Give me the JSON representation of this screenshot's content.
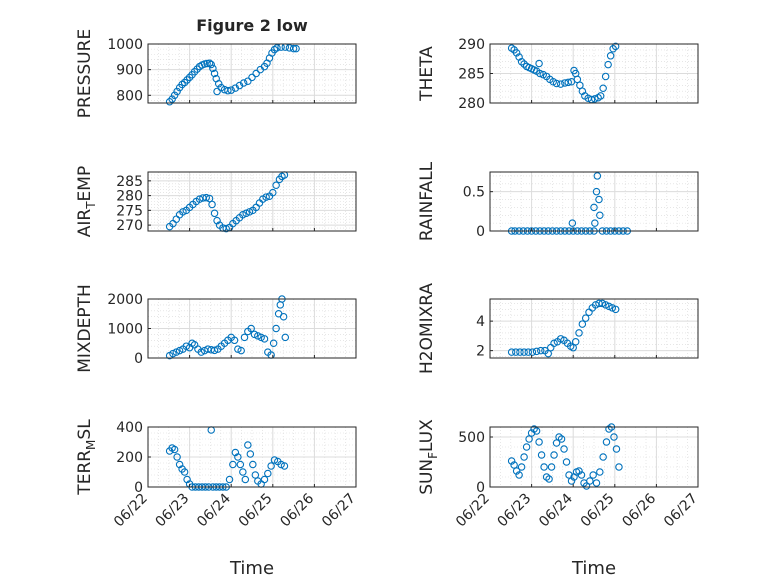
{
  "figure": {
    "title": "Figure 2 low",
    "xlabel_left": "Time",
    "xlabel_right": "Time",
    "marker_color": "#0072bd",
    "x_tick_labels": [
      "06/22",
      "06/23",
      "06/24",
      "06/25",
      "06/26",
      "06/27"
    ]
  },
  "chart_data": [
    {
      "type": "scatter",
      "ylabel": "PRESSURE",
      "title": "Figure 2 low",
      "xlim": [
        0,
        5
      ],
      "ylim": [
        770,
        1000
      ],
      "yticks": [
        800,
        900,
        1000
      ],
      "x_tick_labels": [
        "06/22",
        "06/23",
        "06/24",
        "06/25",
        "06/26",
        "06/27"
      ],
      "grid": true,
      "points": [
        [
          0.52,
          775
        ],
        [
          0.58,
          785
        ],
        [
          0.64,
          800
        ],
        [
          0.7,
          815
        ],
        [
          0.76,
          830
        ],
        [
          0.82,
          842
        ],
        [
          0.88,
          850
        ],
        [
          0.94,
          860
        ],
        [
          1.0,
          870
        ],
        [
          1.06,
          880
        ],
        [
          1.12,
          892
        ],
        [
          1.18,
          902
        ],
        [
          1.24,
          912
        ],
        [
          1.3,
          918
        ],
        [
          1.36,
          922
        ],
        [
          1.42,
          924
        ],
        [
          1.48,
          925
        ],
        [
          1.52,
          920
        ],
        [
          1.56,
          905
        ],
        [
          1.6,
          885
        ],
        [
          1.64,
          865
        ],
        [
          1.66,
          815
        ],
        [
          1.7,
          845
        ],
        [
          1.76,
          830
        ],
        [
          1.84,
          822
        ],
        [
          1.92,
          818
        ],
        [
          2.0,
          820
        ],
        [
          2.1,
          828
        ],
        [
          2.2,
          838
        ],
        [
          2.3,
          848
        ],
        [
          2.4,
          855
        ],
        [
          2.5,
          870
        ],
        [
          2.6,
          885
        ],
        [
          2.7,
          900
        ],
        [
          2.8,
          912
        ],
        [
          2.86,
          925
        ],
        [
          2.92,
          945
        ],
        [
          2.98,
          965
        ],
        [
          3.04,
          978
        ],
        [
          3.1,
          985
        ],
        [
          3.2,
          988
        ],
        [
          3.3,
          988
        ],
        [
          3.4,
          985
        ],
        [
          3.5,
          982
        ],
        [
          3.56,
          982
        ]
      ]
    },
    {
      "type": "scatter",
      "ylabel": "THETA",
      "xlim": [
        0,
        5
      ],
      "ylim": [
        280,
        290
      ],
      "yticks": [
        280,
        285,
        290
      ],
      "x_tick_labels": [
        "06/22",
        "06/23",
        "06/24",
        "06/25",
        "06/26",
        "06/27"
      ],
      "grid": true,
      "points": [
        [
          0.52,
          289.3
        ],
        [
          0.58,
          289.0
        ],
        [
          0.64,
          288.5
        ],
        [
          0.7,
          287.8
        ],
        [
          0.76,
          287.0
        ],
        [
          0.82,
          286.6
        ],
        [
          0.88,
          286.2
        ],
        [
          0.94,
          286.0
        ],
        [
          1.0,
          285.8
        ],
        [
          1.06,
          285.6
        ],
        [
          1.12,
          285.4
        ],
        [
          1.18,
          286.7
        ],
        [
          1.2,
          285.0
        ],
        [
          1.28,
          284.8
        ],
        [
          1.36,
          284.5
        ],
        [
          1.44,
          284.0
        ],
        [
          1.52,
          283.6
        ],
        [
          1.6,
          283.3
        ],
        [
          1.7,
          283.2
        ],
        [
          1.8,
          283.4
        ],
        [
          1.88,
          283.5
        ],
        [
          1.96,
          283.6
        ],
        [
          2.02,
          285.5
        ],
        [
          2.06,
          285.0
        ],
        [
          2.1,
          284.0
        ],
        [
          2.16,
          283.0
        ],
        [
          2.22,
          282.0
        ],
        [
          2.28,
          281.2
        ],
        [
          2.36,
          280.8
        ],
        [
          2.44,
          280.6
        ],
        [
          2.52,
          280.7
        ],
        [
          2.6,
          280.9
        ],
        [
          2.66,
          281.2
        ],
        [
          2.72,
          282.5
        ],
        [
          2.78,
          284.5
        ],
        [
          2.84,
          286.5
        ],
        [
          2.9,
          288.0
        ],
        [
          2.96,
          289.2
        ],
        [
          3.02,
          289.6
        ]
      ]
    },
    {
      "type": "scatter",
      "ylabel": "AIR_TEMP",
      "ylabel_main": "AIR",
      "ylabel_sub": "T",
      "ylabel_rest": "EMP",
      "xlim": [
        0,
        5
      ],
      "ylim": [
        268,
        288
      ],
      "yticks": [
        270,
        275,
        280,
        285
      ],
      "x_tick_labels": [
        "06/22",
        "06/23",
        "06/24",
        "06/25",
        "06/26",
        "06/27"
      ],
      "grid": true,
      "points": [
        [
          0.52,
          269.5
        ],
        [
          0.6,
          270.5
        ],
        [
          0.68,
          272.0
        ],
        [
          0.76,
          273.5
        ],
        [
          0.84,
          274.5
        ],
        [
          0.92,
          275.0
        ],
        [
          1.0,
          276.0
        ],
        [
          1.08,
          277.0
        ],
        [
          1.16,
          278.0
        ],
        [
          1.24,
          278.8
        ],
        [
          1.32,
          279.2
        ],
        [
          1.4,
          279.3
        ],
        [
          1.48,
          279.0
        ],
        [
          1.54,
          277.0
        ],
        [
          1.6,
          274.0
        ],
        [
          1.66,
          271.5
        ],
        [
          1.72,
          270.0
        ],
        [
          1.8,
          269.0
        ],
        [
          1.88,
          268.8
        ],
        [
          1.96,
          269.2
        ],
        [
          2.04,
          270.5
        ],
        [
          2.12,
          271.5
        ],
        [
          2.2,
          272.5
        ],
        [
          2.28,
          273.5
        ],
        [
          2.36,
          274.0
        ],
        [
          2.44,
          274.5
        ],
        [
          2.52,
          275.0
        ],
        [
          2.6,
          276.0
        ],
        [
          2.68,
          277.5
        ],
        [
          2.76,
          278.8
        ],
        [
          2.84,
          279.5
        ],
        [
          2.92,
          279.8
        ],
        [
          3.0,
          281.0
        ],
        [
          3.08,
          283.5
        ],
        [
          3.16,
          285.5
        ],
        [
          3.22,
          286.5
        ],
        [
          3.28,
          287.0
        ]
      ]
    },
    {
      "type": "scatter",
      "ylabel": "RAINFALL",
      "xlim": [
        0,
        5
      ],
      "ylim": [
        0,
        0.75
      ],
      "yticks": [
        0,
        0.5
      ],
      "ytick_labels": [
        "0",
        "0.5"
      ],
      "x_tick_labels": [
        "06/22",
        "06/23",
        "06/24",
        "06/25",
        "06/26",
        "06/27"
      ],
      "grid": true,
      "points": [
        [
          0.52,
          0
        ],
        [
          0.6,
          0
        ],
        [
          0.7,
          0
        ],
        [
          0.8,
          0
        ],
        [
          0.9,
          0
        ],
        [
          1.0,
          0
        ],
        [
          1.1,
          0
        ],
        [
          1.2,
          0
        ],
        [
          1.3,
          0
        ],
        [
          1.4,
          0
        ],
        [
          1.5,
          0
        ],
        [
          1.6,
          0
        ],
        [
          1.7,
          0
        ],
        [
          1.8,
          0
        ],
        [
          1.9,
          0
        ],
        [
          2.0,
          0
        ],
        [
          2.1,
          0
        ],
        [
          2.2,
          0
        ],
        [
          2.3,
          0
        ],
        [
          2.4,
          0
        ],
        [
          2.5,
          0
        ],
        [
          1.98,
          0.1
        ],
        [
          2.5,
          0.3
        ],
        [
          2.52,
          0.1
        ],
        [
          2.56,
          0.5
        ],
        [
          2.58,
          0.7
        ],
        [
          2.62,
          0.4
        ],
        [
          2.64,
          0.2
        ],
        [
          2.7,
          0
        ],
        [
          2.8,
          0
        ],
        [
          2.9,
          0
        ],
        [
          3.0,
          0
        ],
        [
          3.1,
          0
        ],
        [
          3.2,
          0
        ],
        [
          3.3,
          0
        ]
      ]
    },
    {
      "type": "scatter",
      "ylabel": "MIXDEPTH",
      "xlim": [
        0,
        5
      ],
      "ylim": [
        0,
        2000
      ],
      "yticks": [
        0,
        1000,
        2000
      ],
      "x_tick_labels": [
        "06/22",
        "06/23",
        "06/24",
        "06/25",
        "06/26",
        "06/27"
      ],
      "grid": true,
      "points": [
        [
          0.52,
          80
        ],
        [
          0.6,
          150
        ],
        [
          0.68,
          200
        ],
        [
          0.76,
          250
        ],
        [
          0.84,
          300
        ],
        [
          0.92,
          400
        ],
        [
          1.0,
          350
        ],
        [
          1.06,
          500
        ],
        [
          1.12,
          450
        ],
        [
          1.2,
          300
        ],
        [
          1.28,
          200
        ],
        [
          1.36,
          250
        ],
        [
          1.44,
          300
        ],
        [
          1.52,
          280
        ],
        [
          1.6,
          260
        ],
        [
          1.68,
          300
        ],
        [
          1.76,
          400
        ],
        [
          1.84,
          500
        ],
        [
          1.92,
          600
        ],
        [
          2.0,
          700
        ],
        [
          2.08,
          600
        ],
        [
          2.16,
          300
        ],
        [
          2.24,
          250
        ],
        [
          2.32,
          700
        ],
        [
          2.4,
          900
        ],
        [
          2.48,
          1000
        ],
        [
          2.56,
          800
        ],
        [
          2.64,
          750
        ],
        [
          2.72,
          700
        ],
        [
          2.8,
          650
        ],
        [
          2.88,
          200
        ],
        [
          2.96,
          100
        ],
        [
          3.02,
          500
        ],
        [
          3.08,
          1000
        ],
        [
          3.14,
          1500
        ],
        [
          3.18,
          1800
        ],
        [
          3.22,
          2000
        ],
        [
          3.26,
          1400
        ],
        [
          3.3,
          700
        ]
      ]
    },
    {
      "type": "scatter",
      "ylabel": "H2OMIXRA",
      "xlim": [
        0,
        5
      ],
      "ylim": [
        1.5,
        5.5
      ],
      "yticks": [
        2,
        4
      ],
      "x_tick_labels": [
        "06/22",
        "06/23",
        "06/24",
        "06/25",
        "06/26",
        "06/27"
      ],
      "grid": true,
      "points": [
        [
          0.52,
          1.9
        ],
        [
          0.62,
          1.9
        ],
        [
          0.72,
          1.9
        ],
        [
          0.82,
          1.9
        ],
        [
          0.92,
          1.9
        ],
        [
          1.02,
          1.9
        ],
        [
          1.12,
          1.95
        ],
        [
          1.22,
          2.0
        ],
        [
          1.32,
          2.0
        ],
        [
          1.4,
          1.8
        ],
        [
          1.46,
          2.2
        ],
        [
          1.54,
          2.5
        ],
        [
          1.62,
          2.6
        ],
        [
          1.7,
          2.8
        ],
        [
          1.78,
          2.7
        ],
        [
          1.86,
          2.5
        ],
        [
          1.94,
          2.3
        ],
        [
          2.0,
          2.2
        ],
        [
          2.06,
          2.6
        ],
        [
          2.14,
          3.2
        ],
        [
          2.22,
          3.8
        ],
        [
          2.3,
          4.2
        ],
        [
          2.38,
          4.6
        ],
        [
          2.46,
          4.9
        ],
        [
          2.54,
          5.1
        ],
        [
          2.62,
          5.2
        ],
        [
          2.7,
          5.2
        ],
        [
          2.78,
          5.1
        ],
        [
          2.86,
          5.0
        ],
        [
          2.94,
          4.9
        ],
        [
          3.02,
          4.8
        ]
      ]
    },
    {
      "type": "scatter",
      "ylabel": "TERR_MSL",
      "ylabel_main": "TERR",
      "ylabel_sub": "M",
      "ylabel_rest": "SL",
      "xlim": [
        0,
        5
      ],
      "ylim": [
        0,
        400
      ],
      "yticks": [
        0,
        200,
        400
      ],
      "x_tick_labels": [
        "06/22",
        "06/23",
        "06/24",
        "06/25",
        "06/26",
        "06/27"
      ],
      "grid": true,
      "points": [
        [
          0.52,
          240
        ],
        [
          0.58,
          260
        ],
        [
          0.64,
          250
        ],
        [
          0.7,
          200
        ],
        [
          0.76,
          150
        ],
        [
          0.82,
          120
        ],
        [
          0.88,
          100
        ],
        [
          0.94,
          50
        ],
        [
          1.0,
          20
        ],
        [
          1.06,
          0
        ],
        [
          1.14,
          0
        ],
        [
          1.22,
          0
        ],
        [
          1.3,
          0
        ],
        [
          1.38,
          0
        ],
        [
          1.46,
          0
        ],
        [
          1.52,
          380
        ],
        [
          1.56,
          0
        ],
        [
          1.64,
          0
        ],
        [
          1.72,
          0
        ],
        [
          1.8,
          0
        ],
        [
          1.88,
          0
        ],
        [
          1.96,
          50
        ],
        [
          2.04,
          150
        ],
        [
          2.1,
          230
        ],
        [
          2.16,
          200
        ],
        [
          2.22,
          150
        ],
        [
          2.28,
          100
        ],
        [
          2.34,
          50
        ],
        [
          2.4,
          280
        ],
        [
          2.46,
          220
        ],
        [
          2.52,
          150
        ],
        [
          2.58,
          80
        ],
        [
          2.64,
          40
        ],
        [
          2.72,
          20
        ],
        [
          2.8,
          50
        ],
        [
          2.88,
          90
        ],
        [
          2.96,
          140
        ],
        [
          3.04,
          180
        ],
        [
          3.12,
          170
        ],
        [
          3.2,
          150
        ],
        [
          3.28,
          140
        ]
      ]
    },
    {
      "type": "scatter",
      "ylabel": "SUN_FLUX",
      "ylabel_main": "SUN",
      "ylabel_sub": "F",
      "ylabel_rest": "LUX",
      "xlim": [
        0,
        5
      ],
      "ylim": [
        0,
        600
      ],
      "yticks": [
        0,
        500
      ],
      "x_tick_labels": [
        "06/22",
        "06/23",
        "06/24",
        "06/25",
        "06/26",
        "06/27"
      ],
      "grid": true,
      "points": [
        [
          0.52,
          260
        ],
        [
          0.58,
          220
        ],
        [
          0.64,
          160
        ],
        [
          0.7,
          120
        ],
        [
          0.76,
          200
        ],
        [
          0.82,
          300
        ],
        [
          0.88,
          400
        ],
        [
          0.94,
          480
        ],
        [
          1.0,
          540
        ],
        [
          1.06,
          580
        ],
        [
          1.12,
          560
        ],
        [
          1.18,
          450
        ],
        [
          1.24,
          320
        ],
        [
          1.3,
          200
        ],
        [
          1.36,
          100
        ],
        [
          1.42,
          80
        ],
        [
          1.48,
          200
        ],
        [
          1.54,
          320
        ],
        [
          1.6,
          440
        ],
        [
          1.66,
          500
        ],
        [
          1.72,
          480
        ],
        [
          1.78,
          380
        ],
        [
          1.84,
          250
        ],
        [
          1.9,
          120
        ],
        [
          1.96,
          60
        ],
        [
          2.02,
          100
        ],
        [
          2.08,
          150
        ],
        [
          2.14,
          160
        ],
        [
          2.2,
          120
        ],
        [
          2.26,
          40
        ],
        [
          2.32,
          10
        ],
        [
          2.4,
          60
        ],
        [
          2.48,
          120
        ],
        [
          2.56,
          40
        ],
        [
          2.64,
          150
        ],
        [
          2.72,
          300
        ],
        [
          2.8,
          450
        ],
        [
          2.86,
          580
        ],
        [
          2.92,
          600
        ],
        [
          2.98,
          500
        ],
        [
          3.04,
          380
        ],
        [
          3.1,
          200
        ]
      ]
    }
  ]
}
